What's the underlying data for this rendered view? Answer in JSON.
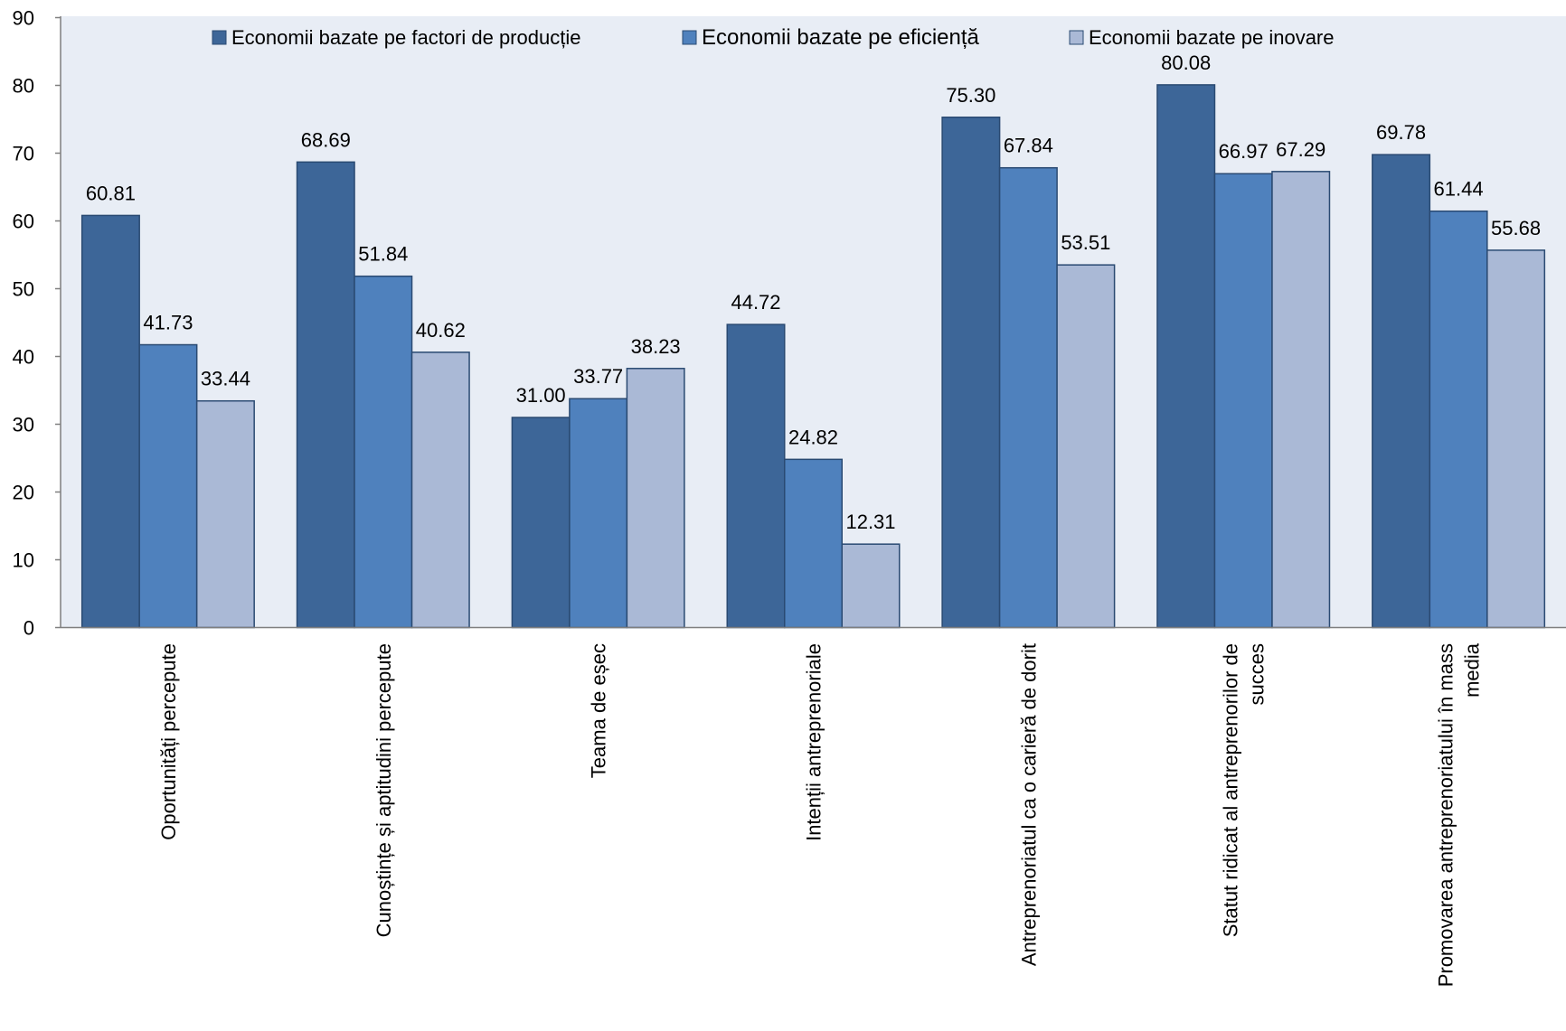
{
  "chart_data": {
    "type": "bar",
    "categories": [
      [
        "Oportunități percepute"
      ],
      [
        "Cunoștințe și aptitudini percepute"
      ],
      [
        "Teama de eșec"
      ],
      [
        "Intenții antreprenoriale"
      ],
      [
        "Antreprenoriatul ca o carieră de dorit"
      ],
      [
        "Statut ridicat al antreprenorilor de",
        "succes"
      ],
      [
        "Promovarea antreprenoriatului în mass",
        "media"
      ]
    ],
    "series": [
      {
        "name": "Economii bazate pe factori de producție",
        "color": "#3d6698",
        "values": [
          60.81,
          68.69,
          31.0,
          44.72,
          75.3,
          80.08,
          69.78
        ],
        "labels": [
          "60.81",
          "68.69",
          "31.00",
          "44.72",
          "75.30",
          "80.08",
          "69.78"
        ]
      },
      {
        "name": "Economii bazate pe eficiență",
        "color": "#4f81bd",
        "values": [
          41.73,
          51.84,
          33.77,
          24.82,
          67.84,
          66.97,
          61.44
        ],
        "labels": [
          "41.73",
          "51.84",
          "33.77",
          "24.82",
          "67.84",
          "66.97",
          "61.44"
        ]
      },
      {
        "name": "Economii bazate pe inovare",
        "color": "#aab9d6",
        "values": [
          33.44,
          40.62,
          38.23,
          12.31,
          53.51,
          67.29,
          55.68
        ],
        "labels": [
          "33.44",
          "40.62",
          "38.23",
          "12.31",
          "53.51",
          "67.29",
          "55.68"
        ]
      }
    ],
    "yticks": [
      "0",
      "10",
      "20",
      "30",
      "40",
      "50",
      "60",
      "70",
      "80",
      "90"
    ],
    "ylim": [
      0,
      90
    ],
    "title": "",
    "xlabel": "",
    "ylabel": "",
    "legend_position": "top",
    "plot_background": "#e8edf5",
    "grid": false
  }
}
